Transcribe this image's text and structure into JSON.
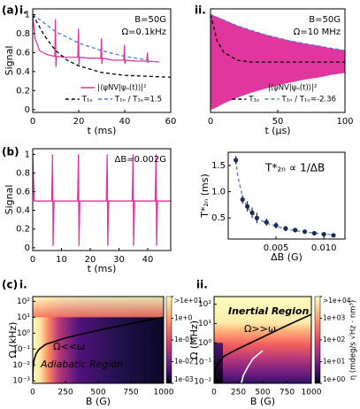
{
  "chart_data": [
    {
      "type": "line",
      "panel": "(a)",
      "sublabel": "i.",
      "xlabel": "t (ms)",
      "ylabel": "Signal",
      "xlim": [
        0,
        60
      ],
      "ylim": [
        -0.03,
        1.06
      ],
      "xticks": [
        0,
        20,
        40,
        60
      ],
      "yticks": [
        0,
        0.2,
        0.4,
        0.6,
        0.8,
        1
      ],
      "annotations": [
        "B=50G",
        "Ω=0.1kHz"
      ],
      "legend": "lower right",
      "series": [
        {
          "name": "|⟨ψNV|ψₙ(t)⟩|²",
          "color": "#e0369d",
          "x": [
            0,
            1,
            3,
            6,
            9.6,
            9.9,
            10.1,
            10.4,
            15,
            19.6,
            19.9,
            20.1,
            20.4,
            25,
            29.6,
            29.9,
            30.1,
            30.4,
            35,
            39.6,
            39.9,
            40.1,
            40.4,
            45,
            49.6,
            49.9,
            50.1,
            50.4,
            55
          ],
          "values": [
            1,
            0.75,
            0.62,
            0.58,
            0.56,
            0.95,
            0.45,
            0.56,
            0.55,
            0.55,
            0.85,
            0.47,
            0.55,
            0.54,
            0.54,
            0.75,
            0.48,
            0.54,
            0.52,
            0.52,
            0.68,
            0.48,
            0.52,
            0.51,
            0.51,
            0.6,
            0.49,
            0.51,
            0.5
          ]
        },
        {
          "name": "T₁ₑ",
          "color": "#000000",
          "dash": true,
          "x": [
            0,
            5,
            10,
            15,
            20,
            30,
            40,
            50,
            60
          ],
          "values": [
            1,
            0.78,
            0.62,
            0.52,
            0.46,
            0.39,
            0.36,
            0.35,
            0.34
          ]
        },
        {
          "name": "T₁ₙ / T₁ₑ=1.5",
          "color": "#4a78d6",
          "dash": true,
          "x": [
            0,
            10,
            20,
            30,
            40,
            50
          ],
          "values": [
            1,
            0.82,
            0.7,
            0.62,
            0.56,
            0.52
          ]
        }
      ]
    },
    {
      "type": "line",
      "sublabel": "ii.",
      "xlabel": "t (μs)",
      "xlim": [
        0,
        100
      ],
      "ylim": [
        -0.03,
        1.06
      ],
      "xticks": [
        0,
        50,
        100
      ],
      "annotations": [
        "B=50G",
        "Ω=10 MHz"
      ],
      "legend": "lower right",
      "series": [
        {
          "name": "|⟨ψNV|ψₙ(t)⟩|²",
          "color": "#e0369d",
          "x": [
            0,
            5,
            10,
            20,
            30,
            40,
            50,
            60,
            70,
            80,
            90,
            100
          ],
          "values": [
            1,
            0.97,
            0.94,
            0.88,
            0.83,
            0.79,
            0.75,
            0.72,
            0.69,
            0.67,
            0.64,
            0.62
          ],
          "lower": [
            0,
            0.03,
            0.07,
            0.13,
            0.18,
            0.22,
            0.26,
            0.29,
            0.32,
            0.34,
            0.37,
            0.39
          ]
        },
        {
          "name": "T₁ₑ",
          "color": "#000000",
          "dash": true,
          "x": [
            0,
            5,
            10,
            20,
            30,
            50,
            100
          ],
          "values": [
            1,
            0.72,
            0.6,
            0.52,
            0.5,
            0.5,
            0.5
          ]
        },
        {
          "name": "T₁ₙ / T₁ₑ=-2.36",
          "color": "#4a78d6",
          "dash": true,
          "x": [
            0,
            10,
            20,
            40,
            60,
            80,
            100
          ],
          "values": [
            1,
            0.94,
            0.88,
            0.79,
            0.72,
            0.67,
            0.62
          ]
        }
      ]
    },
    {
      "type": "line",
      "panel": "(b)",
      "xlabel": "t (ms)",
      "ylabel": "Signal",
      "xlim": [
        0,
        48
      ],
      "ylim": [
        -0.03,
        1.06
      ],
      "xticks": [
        0,
        10,
        20,
        30,
        40
      ],
      "yticks": [
        0,
        0.2,
        0.4,
        0.6,
        0.8,
        1
      ],
      "annotations": [
        "ΔB=0.002G"
      ],
      "series": [
        {
          "color": "#e0369d",
          "x": [
            0,
            0.5,
            6.6,
            6.9,
            7.1,
            7.4,
            15.6,
            15.9,
            16.1,
            16.4,
            25.6,
            25.9,
            26.1,
            26.4,
            34.6,
            34.9,
            35.1,
            35.4,
            42.6,
            42.9,
            43.1,
            43.4,
            48
          ],
          "values": [
            1,
            0.5,
            0.5,
            1,
            0.02,
            0.5,
            0.5,
            1,
            0.02,
            0.5,
            0.5,
            1,
            0.02,
            0.5,
            0.5,
            1,
            0.02,
            0.5,
            0.5,
            1,
            0.02,
            0.5,
            0.5
          ]
        }
      ]
    },
    {
      "type": "scatter",
      "xlabel": "ΔB (G)",
      "ylabel": "T*₂ₙ (ms)",
      "xlim": [
        0,
        0.0122
      ],
      "ylim": [
        0.1,
        1.75
      ],
      "xticks": [
        0.005,
        {
          "value": 0.01,
          "label": "0.010"
        }
      ],
      "yticks": [
        0.5,
        {
          "value": 1,
          "label": "1.0"
        },
        1.5
      ],
      "annotations": [
        "T*₂ₙ ∝ 1/ΔB"
      ],
      "series": [
        {
          "color": "#4a78d6",
          "dash": true,
          "x": [
            0.0008,
            0.001,
            0.0015,
            0.002,
            0.003,
            0.004,
            0.006,
            0.008,
            0.011
          ],
          "values": [
            1.6,
            1.3,
            0.9,
            0.7,
            0.5,
            0.4,
            0.29,
            0.23,
            0.18
          ]
        },
        {
          "color": "#1f2d4d",
          "x": [
            0.0008,
            0.0015,
            0.002,
            0.0025,
            0.003,
            0.004,
            0.005,
            0.006,
            0.007,
            0.008,
            0.009,
            0.01,
            0.011
          ],
          "values": [
            1.6,
            0.85,
            0.72,
            0.6,
            0.5,
            0.42,
            0.36,
            0.3,
            0.27,
            0.24,
            0.21,
            0.19,
            0.17
          ],
          "errors": [
            0.08,
            0.08,
            0.1,
            0.1,
            0.1,
            0.07,
            0.06,
            0.05,
            0.04,
            0.04,
            0.03,
            0.03,
            0.02
          ]
        }
      ]
    },
    {
      "type": "heatmap",
      "panel": "(c)",
      "sublabel": "i.",
      "xlabel": "B (G)",
      "ylabel": "Ω (kHz)",
      "xlim": [
        0,
        1000
      ],
      "ylim": [
        0.0007,
        200
      ],
      "ylog": true,
      "xticks": [
        0,
        250,
        500,
        750,
        1000
      ],
      "yticks": [
        {
          "value": 0.001,
          "label": "10⁻³"
        },
        {
          "value": 0.01,
          "label": "10⁻²"
        },
        {
          "value": 0.1,
          "label": "10⁻¹"
        },
        {
          "value": 1,
          "label": "10⁰"
        },
        {
          "value": 10,
          "label": "10¹"
        },
        {
          "value": 100,
          "label": "10²"
        }
      ],
      "annotations": [
        "Ω<<ω",
        "Adiabatic Region"
      ],
      "colorbar": {
        "lim": [
          0.001,
          10
        ],
        "log": true,
        "ticks": [
          {
            "value": 10,
            "label": ">1e+01"
          },
          {
            "value": 1,
            "label": "1e+0"
          },
          {
            "value": 0.1,
            "label": "1e-01"
          },
          {
            "value": 0.01,
            "label": "1e-02"
          },
          {
            "value": 0.001,
            "label": "1e-03"
          }
        ]
      },
      "series": [
        {
          "color": "#000000",
          "x": [
            0.5,
            2,
            5,
            10,
            25,
            50,
            100,
            250,
            500,
            750,
            1000
          ],
          "values": [
            0.001,
            0.004,
            0.01,
            0.02,
            0.05,
            0.1,
            0.2,
            0.5,
            1.5,
            4,
            10
          ]
        }
      ]
    },
    {
      "type": "heatmap",
      "sublabel": "ii.",
      "xlabel": "B (G)",
      "ylabel": "Ω (MHz)",
      "xlim": [
        0,
        1000
      ],
      "ylim": [
        0.008,
        250
      ],
      "ylog": true,
      "xticks": [
        0,
        250,
        500,
        750,
        1000
      ],
      "yticks": [
        {
          "value": 0.01,
          "label": "10⁻²"
        },
        {
          "value": 0.1,
          "label": "10⁻¹"
        },
        {
          "value": 1,
          "label": "10⁰"
        },
        {
          "value": 10,
          "label": "10¹"
        },
        {
          "value": 100,
          "label": "10²"
        }
      ],
      "annotations": [
        "Inertial Region",
        "Ω>>ω"
      ],
      "colorbar": {
        "lim": [
          1,
          10000
        ],
        "log": true,
        "label": "η (mdeg/s √Hz · nm³)",
        "ticks": [
          {
            "value": 10000,
            "label": ">1e+04"
          },
          {
            "value": 1000,
            "label": "1e+03"
          },
          {
            "value": 100,
            "label": "1e+02"
          },
          {
            "value": 10,
            "label": "1e+01"
          },
          {
            "value": 1,
            "label": "1e+00"
          }
        ]
      },
      "series": [
        {
          "color": "#000000",
          "x": [
            2,
            5,
            10,
            25,
            50,
            100,
            250,
            500,
            750,
            1000
          ],
          "values": [
            0.01,
            0.02,
            0.03,
            0.06,
            0.1,
            0.2,
            0.5,
            2,
            8,
            30
          ]
        },
        {
          "color": "#ffffff",
          "x": [
            280,
            300,
            350,
            400,
            500
          ],
          "values": [
            0.008,
            0.02,
            0.06,
            0.15,
            0.4
          ]
        }
      ]
    }
  ]
}
